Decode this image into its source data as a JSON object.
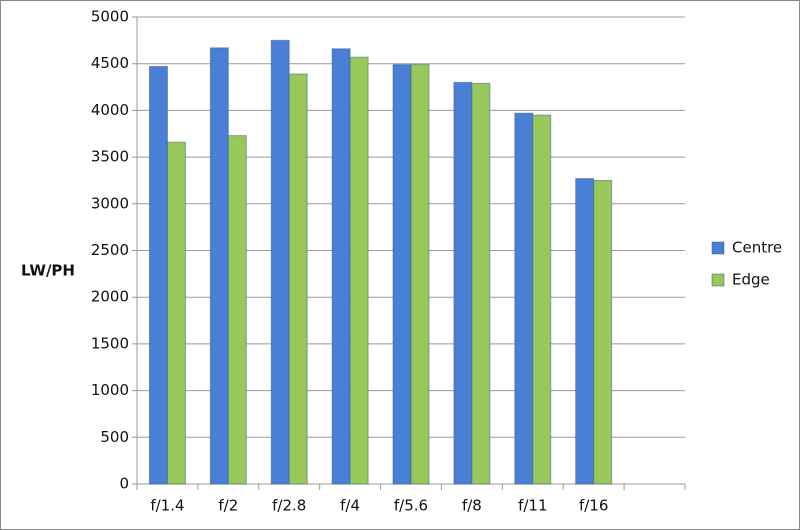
{
  "chart_data": {
    "type": "bar",
    "y_label": "LW/PH",
    "categories": [
      "f/1.4",
      "f/2",
      "f/2.8",
      "f/4",
      "f/5.6",
      "f/8",
      "f/11",
      "f/16",
      null
    ],
    "series": [
      {
        "name": "Centre",
        "color": "#4a7fd6",
        "values": [
          4470,
          4670,
          4750,
          4660,
          4490,
          4300,
          3970,
          3270,
          null
        ]
      },
      {
        "name": "Edge",
        "color": "#98c75a",
        "values": [
          3660,
          3730,
          4390,
          4570,
          4490,
          4290,
          3950,
          3250,
          null
        ]
      }
    ],
    "ylim": [
      0,
      5000
    ],
    "yticks": [
      0,
      500,
      1000,
      1500,
      2000,
      2500,
      3000,
      3500,
      4000,
      4500,
      5000
    ],
    "grid": true,
    "legend": "right"
  }
}
